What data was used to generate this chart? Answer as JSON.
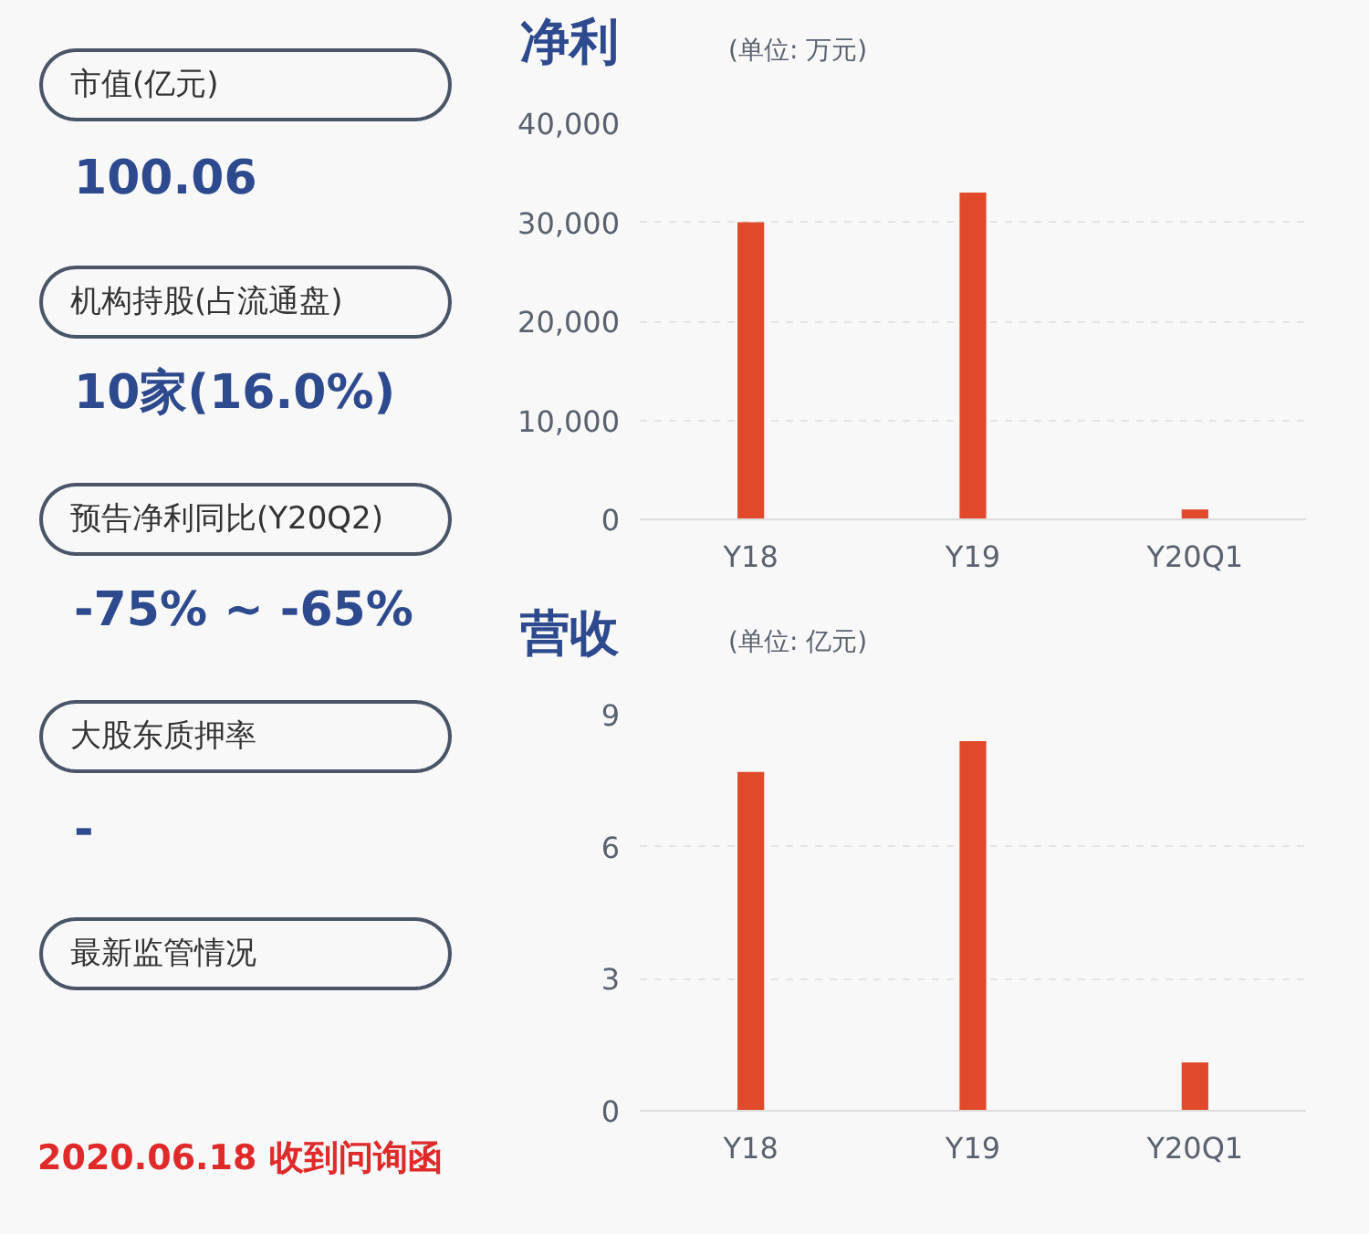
{
  "chart_data": [
    {
      "type": "other",
      "annotations": [
        "市值(亿元)",
        "100.06",
        "机构持股(占流通盘)",
        "10家(16.0%)",
        "预告净利同比(Y20Q2)",
        "-75% ~ -65%",
        "大股东质押率",
        "-",
        "最新监管情况",
        "2020.06.18 收到问询函"
      ]
    },
    {
      "type": "bar",
      "title": "净利",
      "subtitle": "(单位: 万元)",
      "categories": [
        "Y18",
        "Y19",
        "Y20Q1"
      ],
      "values": [
        30000,
        33000,
        1000
      ],
      "color": "#e04a2a",
      "ylim": [
        0,
        40000
      ],
      "yticks": [
        {
          "value": 0,
          "label": "0"
        },
        {
          "value": 10000,
          "label": "10,000"
        },
        {
          "value": 20000,
          "label": "20,000"
        },
        {
          "value": 30000,
          "label": "30,000"
        },
        {
          "value": 40000,
          "label": "40,000"
        }
      ],
      "grid": "y"
    },
    {
      "type": "bar",
      "title": "营收",
      "subtitle": "(单位: 亿元)",
      "categories": [
        "Y18",
        "Y19",
        "Y20Q1"
      ],
      "values": [
        7.7,
        8.4,
        1.1
      ],
      "color": "#e04a2a",
      "ylim": [
        0,
        9
      ],
      "yticks": [
        0,
        3,
        6,
        9
      ],
      "grid": "y"
    }
  ]
}
